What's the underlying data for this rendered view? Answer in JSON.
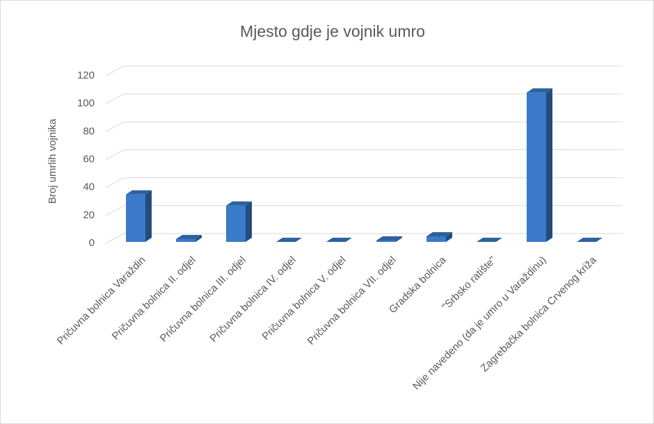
{
  "chart_data": {
    "type": "bar",
    "title": "Mjesto gdje je vojnik umro",
    "y_label": "Broj umrlih vojnika",
    "categories": [
      "Pričuvna bolnica Varaždin",
      "Pričuvna bolnica II. odjel",
      "Pričuvna bolnica III. odjel",
      "Pričuvna bolnica IV. odjel",
      "Pričuvna bolnica V. odjel",
      "Pričuvna bolnica VII. odjel",
      "Gradska bolnica",
      "\"Srbsko ratište\"",
      "Nije navedeno (da je umro u Varaždinu)",
      "Zagrebačka bolnica Crvenog križa"
    ],
    "values": [
      35,
      3,
      27,
      1,
      1,
      2,
      5,
      1,
      108,
      1
    ],
    "color": "#3a7ac8",
    "ylim": [
      0,
      120
    ],
    "yticks": [
      0,
      20,
      40,
      60,
      80,
      100,
      120
    ],
    "grid": true
  }
}
